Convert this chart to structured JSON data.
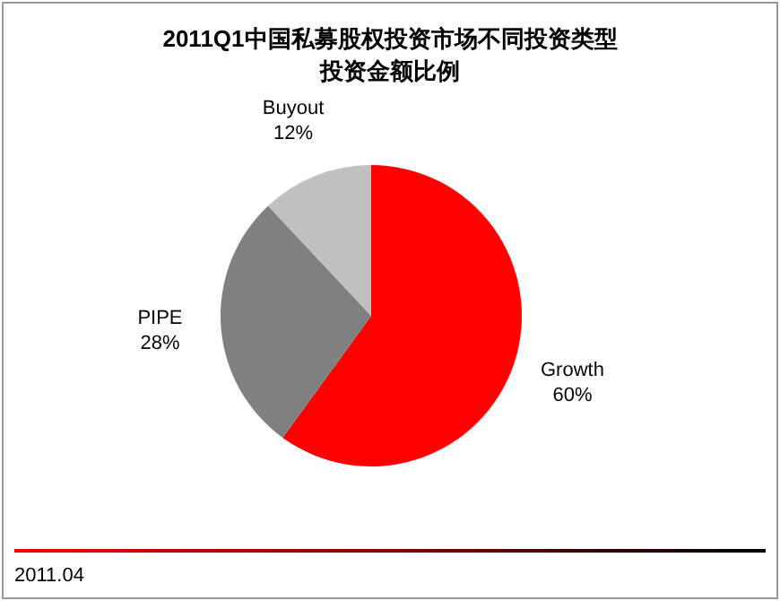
{
  "chart_data": {
    "type": "pie",
    "title": "2011Q1中国私募股权投资市场不同投资类型投资金额比例",
    "categories": [
      "Growth",
      "PIPE",
      "Buyout"
    ],
    "values": [
      60,
      28,
      12
    ],
    "colors": [
      "#ff0000",
      "#808080",
      "#c0c0c0"
    ],
    "value_labels": [
      "60%",
      "28%",
      "12%"
    ],
    "annotations": [
      "2011.04"
    ]
  }
}
